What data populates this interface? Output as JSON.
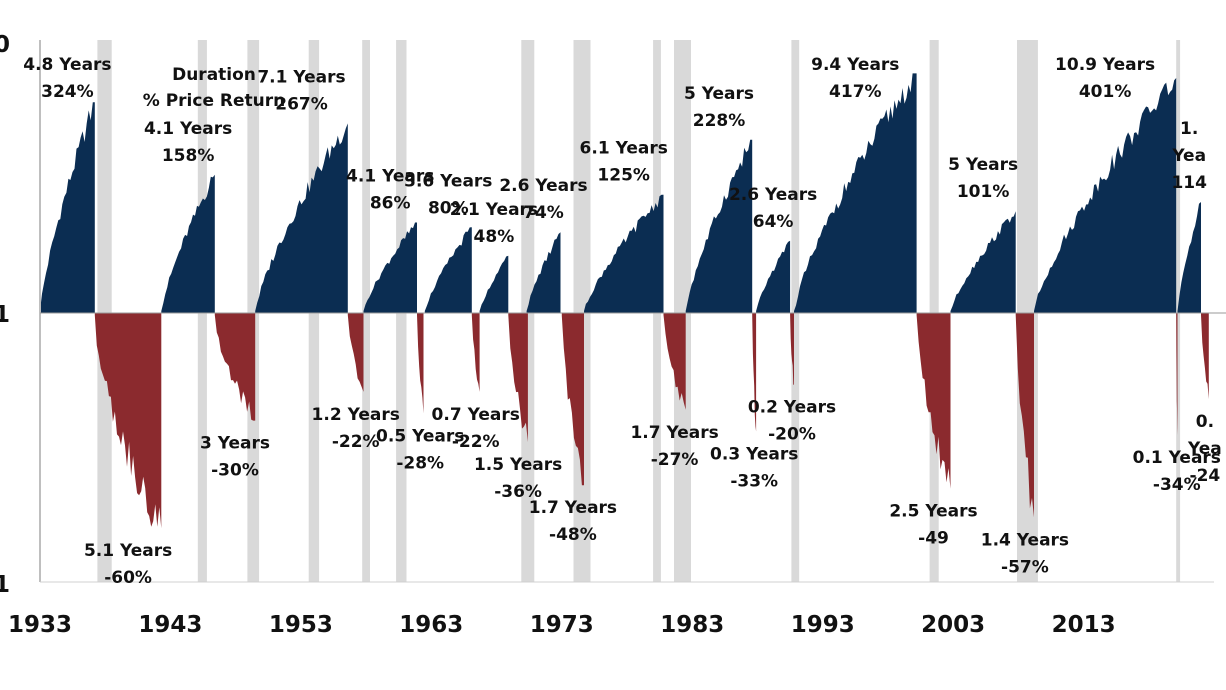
{
  "chart_data": {
    "type": "area",
    "title": "",
    "xlabel": "",
    "ylabel": "",
    "y_scale": "log",
    "y_tick_labels": [
      "0",
      "1",
      "1"
    ],
    "x_ticks": [
      1933,
      1943,
      1953,
      1963,
      1973,
      1983,
      1993,
      2003,
      2013
    ],
    "xlim": [
      1933,
      2023
    ],
    "legend_text": [
      "Duration",
      "% Price Return"
    ],
    "colors": {
      "bull": "#0b2d52",
      "bear": "#8b2a2e",
      "recession": "#d9d9d9",
      "axis": "#bfbfbf"
    },
    "recessions": [
      [
        1937.4,
        1938.5
      ],
      [
        1945.1,
        1945.8
      ],
      [
        1948.9,
        1949.8
      ],
      [
        1953.6,
        1954.4
      ],
      [
        1957.7,
        1958.3
      ],
      [
        1960.3,
        1961.1
      ],
      [
        1969.9,
        1970.9
      ],
      [
        1973.9,
        1975.2
      ],
      [
        1980.0,
        1980.6
      ],
      [
        1981.6,
        1982.9
      ],
      [
        1990.6,
        1991.2
      ],
      [
        2001.2,
        2001.9
      ],
      [
        2007.9,
        2009.5
      ],
      [
        2020.1,
        2020.4
      ]
    ],
    "bull_markets": [
      {
        "start": 1933.0,
        "end": 1937.2,
        "duration_years": 4.8,
        "return_pct": 324,
        "label": [
          "4.8 Years",
          "324%"
        ]
      },
      {
        "start": 1942.3,
        "end": 1946.4,
        "duration_years": 4.1,
        "return_pct": 158,
        "label": [
          "4.1 Years",
          "158%"
        ]
      },
      {
        "start": 1949.5,
        "end": 1956.6,
        "duration_years": 7.1,
        "return_pct": 267,
        "label": [
          "7.1 Years",
          "267%"
        ]
      },
      {
        "start": 1957.8,
        "end": 1961.9,
        "duration_years": 4.1,
        "return_pct": 86,
        "label": [
          "4.1 Years",
          "86%"
        ]
      },
      {
        "start": 1962.5,
        "end": 1966.1,
        "duration_years": 3.6,
        "return_pct": 80,
        "label": [
          "3.6 Years",
          "80%"
        ]
      },
      {
        "start": 1966.7,
        "end": 1968.9,
        "duration_years": 2.1,
        "return_pct": 48,
        "label": [
          "2.1 Years",
          "48%"
        ]
      },
      {
        "start": 1970.3,
        "end": 1972.9,
        "duration_years": 2.6,
        "return_pct": 74,
        "label": [
          "2.6 Years",
          "74%"
        ]
      },
      {
        "start": 1974.7,
        "end": 1980.8,
        "duration_years": 6.1,
        "return_pct": 125,
        "label": [
          "6.1 Years",
          "125%"
        ]
      },
      {
        "start": 1982.5,
        "end": 1987.6,
        "duration_years": 5,
        "return_pct": 228,
        "label": [
          "5 Years",
          "228%"
        ]
      },
      {
        "start": 1987.9,
        "end": 1990.5,
        "duration_years": 2.6,
        "return_pct": 64,
        "label": [
          "2.6 Years",
          "64%"
        ]
      },
      {
        "start": 1990.8,
        "end": 2000.2,
        "duration_years": 9.4,
        "return_pct": 417,
        "label": [
          "9.4 Years",
          "417%"
        ]
      },
      {
        "start": 2002.8,
        "end": 2007.8,
        "duration_years": 5,
        "return_pct": 101,
        "label": [
          "5 Years",
          "101%"
        ]
      },
      {
        "start": 2009.2,
        "end": 2020.1,
        "duration_years": 10.9,
        "return_pct": 401,
        "label": [
          "10.9 Years",
          "401%"
        ]
      },
      {
        "start": 2020.2,
        "end": 2022.0,
        "label": [
          "1.",
          "Yea",
          "114"
        ]
      }
    ],
    "bear_markets": [
      {
        "start": 1937.2,
        "end": 1942.3,
        "duration_years": 5.1,
        "return_pct": -60,
        "label": [
          "5.1 Years",
          "-60%"
        ]
      },
      {
        "start": 1946.4,
        "end": 1949.5,
        "duration_years": 3,
        "return_pct": -30,
        "label": [
          "3 Years",
          "-30%"
        ]
      },
      {
        "start": 1956.6,
        "end": 1957.8,
        "duration_years": 1.2,
        "return_pct": -22,
        "label": [
          "1.2 Years",
          "-22%"
        ]
      },
      {
        "start": 1961.9,
        "end": 1962.4,
        "duration_years": 0.5,
        "return_pct": -28,
        "label": [
          "0.5 Years",
          "-28%"
        ]
      },
      {
        "start": 1966.1,
        "end": 1966.7,
        "duration_years": 0.7,
        "return_pct": -22,
        "label": [
          "0.7 Years",
          "-22%"
        ]
      },
      {
        "start": 1968.9,
        "end": 1970.4,
        "duration_years": 1.5,
        "return_pct": -36,
        "label": [
          "1.5 Years",
          "-36%"
        ]
      },
      {
        "start": 1973.0,
        "end": 1974.7,
        "duration_years": 1.7,
        "return_pct": -48,
        "label": [
          "1.7 Years",
          "-48%"
        ]
      },
      {
        "start": 1980.8,
        "end": 1982.5,
        "duration_years": 1.7,
        "return_pct": -27,
        "label": [
          "1.7 Years",
          "-27%"
        ]
      },
      {
        "start": 1987.6,
        "end": 1987.9,
        "duration_years": 0.3,
        "return_pct": -33,
        "label": [
          "0.3 Years",
          "-33%"
        ]
      },
      {
        "start": 1990.5,
        "end": 1990.8,
        "duration_years": 0.2,
        "return_pct": -20,
        "label": [
          "0.2 Years",
          "-20%"
        ]
      },
      {
        "start": 2000.2,
        "end": 2002.8,
        "duration_years": 2.5,
        "return_pct": -49,
        "label": [
          "2.5 Years",
          "-49"
        ]
      },
      {
        "start": 2007.8,
        "end": 2009.2,
        "duration_years": 1.4,
        "return_pct": -57,
        "label": [
          "1.4 Years",
          "-57%"
        ]
      },
      {
        "start": 2020.1,
        "end": 2020.2,
        "duration_years": 0.1,
        "return_pct": -34,
        "label": [
          "0.1 Years",
          "-34%"
        ]
      },
      {
        "start": 2022.0,
        "end": 2022.6,
        "label": [
          "0.",
          "Yea",
          "-24"
        ]
      }
    ]
  }
}
